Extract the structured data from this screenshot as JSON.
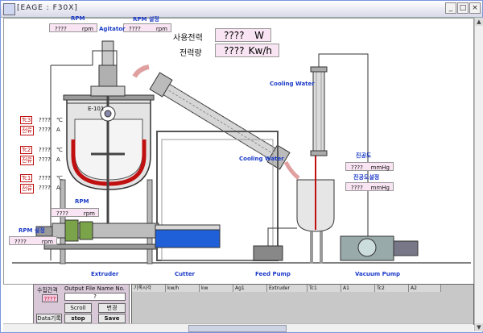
{
  "window": {
    "title": "[EAGE : F30X]",
    "min_label": "_",
    "max_label": "□",
    "close_label": "×"
  },
  "labels": {
    "rpm": "RPM",
    "rpm_setting": "RPM 설정",
    "agitator": "Agitator",
    "e101": "E-101",
    "cooling_water_1": "Cooling Water",
    "cooling_water_2": "Cooling Water",
    "vacuum_degree": "진공도",
    "vacuum_setting": "진공도설정",
    "rpm_lower": "RPM",
    "rpm_setting_lower": "RPM 설정",
    "extruder": "Extruder",
    "cutter": "Cutter",
    "feed_pump": "Feed Pump",
    "vacuum_pump": "Vacuum Pump"
  },
  "readouts": {
    "rpm_top": {
      "value": "????",
      "unit": "rpm"
    },
    "rpm_setting_top": {
      "value": "????",
      "unit": "rpm"
    },
    "rpm_mid": {
      "value": "????",
      "unit": "rpm"
    },
    "rpm_setting_low": {
      "value": "????",
      "unit": "rpm"
    },
    "vacuum": {
      "value": "????",
      "unit": "mmHg"
    },
    "vacuum_setting": {
      "value": "????",
      "unit": "mmHg"
    }
  },
  "power": {
    "usage_label": "사용전력",
    "usage_value": "????",
    "usage_unit": "W",
    "energy_label": "전력량",
    "energy_value": "????",
    "energy_unit": "Kw/h"
  },
  "temps": [
    {
      "tag": "Tc3",
      "value": "????",
      "unit": "℃",
      "cur_tag": "전류",
      "cur_value": "????",
      "cur_unit": "A"
    },
    {
      "tag": "Tc2",
      "value": "????",
      "unit": "℃",
      "cur_tag": "전류",
      "cur_value": "????",
      "cur_unit": "A"
    },
    {
      "tag": "Tc1",
      "value": "????",
      "unit": "℃",
      "cur_tag": "전류",
      "cur_value": "????",
      "cur_unit": "A"
    }
  ],
  "control": {
    "interval_label": "수집간격",
    "interval_value": "????",
    "file_label": "Output File Name  No.",
    "file_value": "?",
    "scroll_label": "Scroll",
    "change_label": "변경",
    "record_label": "Data기록",
    "stop_label": "stop",
    "save_label": "Save"
  },
  "table": {
    "columns": [
      "기록시각",
      "kw/h",
      "kw",
      "Ag1",
      "Extruder",
      "Tc1",
      "A1",
      "Tc2",
      "A2"
    ]
  },
  "colors": {
    "label_blue": "#1a3ac8",
    "readout_bg": "#f8e4f2",
    "heater_red": "#c01010"
  }
}
